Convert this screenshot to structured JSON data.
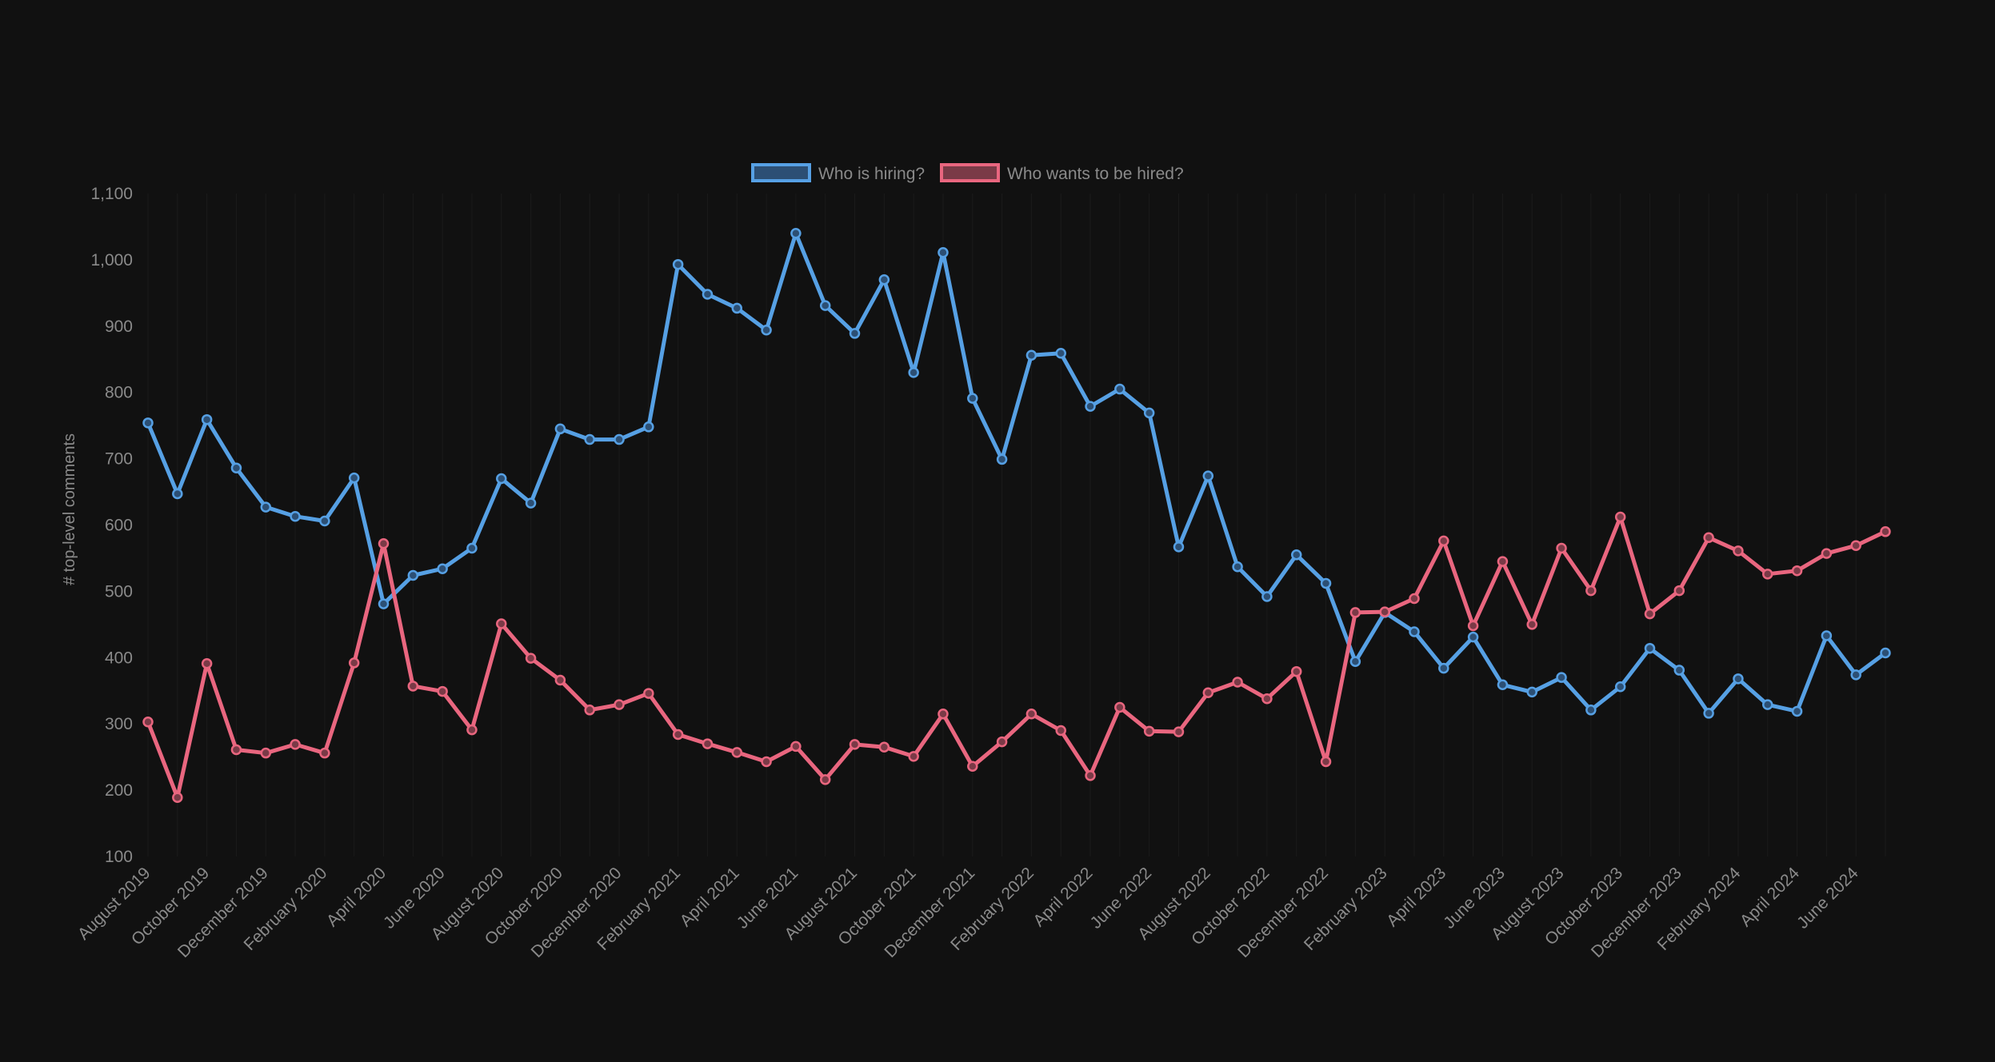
{
  "chart_data": {
    "type": "line",
    "title": "",
    "xlabel": "",
    "ylabel": "# top-level comments",
    "ylim": [
      100,
      1100
    ],
    "yticks": [
      100,
      200,
      300,
      400,
      500,
      600,
      700,
      800,
      900,
      1000,
      1100
    ],
    "ytick_labels": [
      "100",
      "200",
      "300",
      "400",
      "500",
      "600",
      "700",
      "800",
      "900",
      "1,000",
      "1,100"
    ],
    "grid": true,
    "legend_position": "top-center",
    "x": [
      "August 2019",
      "September 2019",
      "October 2019",
      "November 2019",
      "December 2019",
      "January 2020",
      "February 2020",
      "March 2020",
      "April 2020",
      "May 2020",
      "June 2020",
      "July 2020",
      "August 2020",
      "September 2020",
      "October 2020",
      "November 2020",
      "December 2020",
      "January 2021",
      "February 2021",
      "March 2021",
      "April 2021",
      "May 2021",
      "June 2021",
      "July 2021",
      "August 2021",
      "September 2021",
      "October 2021",
      "November 2021",
      "December 2021",
      "January 2022",
      "February 2022",
      "March 2022",
      "April 2022",
      "May 2022",
      "June 2022",
      "July 2022",
      "August 2022",
      "September 2022",
      "October 2022",
      "November 2022",
      "December 2022",
      "January 2023",
      "February 2023",
      "March 2023",
      "April 2023",
      "May 2023",
      "June 2023",
      "July 2023",
      "August 2023",
      "September 2023",
      "October 2023",
      "November 2023",
      "December 2023",
      "January 2024",
      "February 2024",
      "March 2024",
      "April 2024",
      "May 2024",
      "June 2024",
      "July 2024"
    ],
    "x_tick_labels": [
      "August 2019",
      "October 2019",
      "December 2019",
      "February 2020",
      "April 2020",
      "June 2020",
      "August 2020",
      "October 2020",
      "December 2020",
      "February 2021",
      "April 2021",
      "June 2021",
      "August 2021",
      "October 2021",
      "December 2021",
      "February 2022",
      "April 2022",
      "June 2022",
      "August 2022",
      "October 2022",
      "December 2022",
      "February 2023",
      "April 2023",
      "June 2023",
      "August 2023",
      "October 2023",
      "December 2023",
      "February 2024",
      "April 2024",
      "June 2024"
    ],
    "series": [
      {
        "name": "Who is hiring?",
        "color": "#56a0e4",
        "fill": "#2c4f74",
        "values": [
          754,
          647,
          759,
          686,
          627,
          613,
          606,
          671,
          481,
          524,
          534,
          565,
          670,
          633,
          745,
          729,
          729,
          748,
          993,
          948,
          927,
          894,
          1040,
          931,
          889,
          970,
          830,
          1011,
          791,
          699,
          856,
          859,
          779,
          805,
          769,
          567,
          674,
          537,
          492,
          555,
          512,
          394,
          468,
          439,
          384,
          431,
          359,
          348,
          370,
          321,
          356,
          414,
          381,
          316,
          368,
          329,
          319,
          433,
          374,
          407
        ]
      },
      {
        "name": "Who wants to be hired?",
        "color": "#e9667f",
        "fill": "#7a3a47",
        "values": [
          303,
          189,
          391,
          261,
          256,
          269,
          256,
          392,
          572,
          357,
          349,
          291,
          451,
          399,
          366,
          321,
          329,
          346,
          284,
          270,
          257,
          243,
          266,
          216,
          269,
          265,
          251,
          315,
          236,
          273,
          315,
          290,
          222,
          325,
          289,
          288,
          347,
          363,
          338,
          379,
          243,
          468,
          469,
          489,
          576,
          448,
          545,
          450,
          565,
          501,
          612,
          466,
          501,
          581,
          561,
          526,
          531,
          557,
          569,
          590
        ]
      }
    ]
  }
}
